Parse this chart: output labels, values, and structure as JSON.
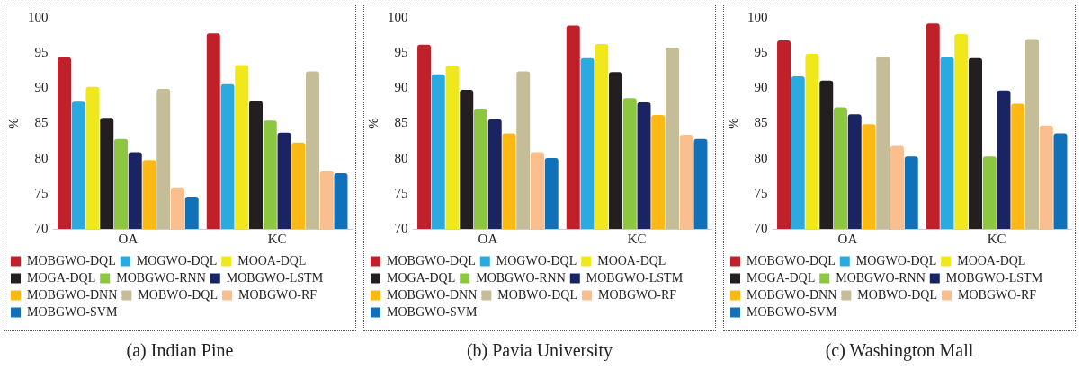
{
  "chart_data": [
    {
      "type": "bar",
      "title": "(a) Indian Pine",
      "ylabel": "%",
      "categories": [
        "OA",
        "KC"
      ],
      "ylim": [
        70,
        100
      ],
      "yticks": [
        70,
        75,
        80,
        85,
        90,
        95,
        100
      ],
      "grid": false,
      "legend": "bottom",
      "series": [
        {
          "name": "MOBGWO-DQL",
          "color": "#c0202a",
          "values": [
            94.4,
            97.8
          ]
        },
        {
          "name": "MOGWO-DQL",
          "color": "#29abe2",
          "values": [
            88.1,
            90.6
          ]
        },
        {
          "name": "MOOA-DQL",
          "color": "#f0e81a",
          "values": [
            90.2,
            93.3
          ]
        },
        {
          "name": "MOGA-DQL",
          "color": "#231f20",
          "values": [
            85.8,
            88.2
          ]
        },
        {
          "name": "MOBGWO-RNN",
          "color": "#8dc63f",
          "values": [
            82.8,
            85.4
          ]
        },
        {
          "name": "MOBGWO-LSTM",
          "color": "#1b2463",
          "values": [
            80.9,
            83.7
          ]
        },
        {
          "name": "MOBGWO-DNN",
          "color": "#fdb913",
          "values": [
            79.8,
            82.3
          ]
        },
        {
          "name": "MOBWO-DQL",
          "color": "#c4bd97",
          "values": [
            89.9,
            92.4
          ]
        },
        {
          "name": "MOBGWO-RF",
          "color": "#fbbf8e",
          "values": [
            75.9,
            78.2
          ]
        },
        {
          "name": "MOBGWO-SVM",
          "color": "#1070b8",
          "values": [
            74.6,
            77.9
          ]
        }
      ]
    },
    {
      "type": "bar",
      "title": "(b) Pavia University",
      "ylabel": "%",
      "categories": [
        "OA",
        "KC"
      ],
      "ylim": [
        70,
        100
      ],
      "yticks": [
        70,
        75,
        80,
        85,
        90,
        95,
        100
      ],
      "grid": false,
      "legend": "bottom",
      "series": [
        {
          "name": "MOBGWO-DQL",
          "color": "#c0202a",
          "values": [
            96.2,
            98.9
          ]
        },
        {
          "name": "MOGWO-DQL",
          "color": "#29abe2",
          "values": [
            92.0,
            94.3
          ]
        },
        {
          "name": "MOOA-DQL",
          "color": "#f0e81a",
          "values": [
            93.2,
            96.3
          ]
        },
        {
          "name": "MOGA-DQL",
          "color": "#231f20",
          "values": [
            89.8,
            92.3
          ]
        },
        {
          "name": "MOBGWO-RNN",
          "color": "#8dc63f",
          "values": [
            87.1,
            88.6
          ]
        },
        {
          "name": "MOBGWO-LSTM",
          "color": "#1b2463",
          "values": [
            85.6,
            88.0
          ]
        },
        {
          "name": "MOBGWO-DNN",
          "color": "#fdb913",
          "values": [
            83.6,
            86.2
          ]
        },
        {
          "name": "MOBWO-DQL",
          "color": "#c4bd97",
          "values": [
            92.4,
            95.8
          ]
        },
        {
          "name": "MOBGWO-RF",
          "color": "#fbbf8e",
          "values": [
            80.9,
            83.4
          ]
        },
        {
          "name": "MOBGWO-SVM",
          "color": "#1070b8",
          "values": [
            80.1,
            82.8
          ]
        }
      ]
    },
    {
      "type": "bar",
      "title": "(c) Washington Mall",
      "ylabel": "%",
      "categories": [
        "OA",
        "KC"
      ],
      "ylim": [
        70,
        100
      ],
      "yticks": [
        70,
        75,
        80,
        85,
        90,
        95,
        100
      ],
      "grid": false,
      "legend": "bottom",
      "series": [
        {
          "name": "MOBGWO-DQL",
          "color": "#c0202a",
          "values": [
            96.8,
            99.2
          ]
        },
        {
          "name": "MOGWO-DQL",
          "color": "#29abe2",
          "values": [
            91.7,
            94.4
          ]
        },
        {
          "name": "MOOA-DQL",
          "color": "#f0e81a",
          "values": [
            94.9,
            97.7
          ]
        },
        {
          "name": "MOGA-DQL",
          "color": "#231f20",
          "values": [
            91.1,
            94.3
          ]
        },
        {
          "name": "MOBGWO-RNN",
          "color": "#8dc63f",
          "values": [
            87.3,
            80.3
          ]
        },
        {
          "name": "MOBGWO-LSTM",
          "color": "#1b2463",
          "values": [
            86.3,
            89.7
          ]
        },
        {
          "name": "MOBGWO-DNN",
          "color": "#fdb913",
          "values": [
            84.9,
            87.8
          ]
        },
        {
          "name": "MOBWO-DQL",
          "color": "#c4bd97",
          "values": [
            94.5,
            97.0
          ]
        },
        {
          "name": "MOBGWO-RF",
          "color": "#fbbf8e",
          "values": [
            81.8,
            84.7
          ]
        },
        {
          "name": "MOBGWO-SVM",
          "color": "#1070b8",
          "values": [
            80.3,
            83.6
          ]
        }
      ]
    }
  ]
}
